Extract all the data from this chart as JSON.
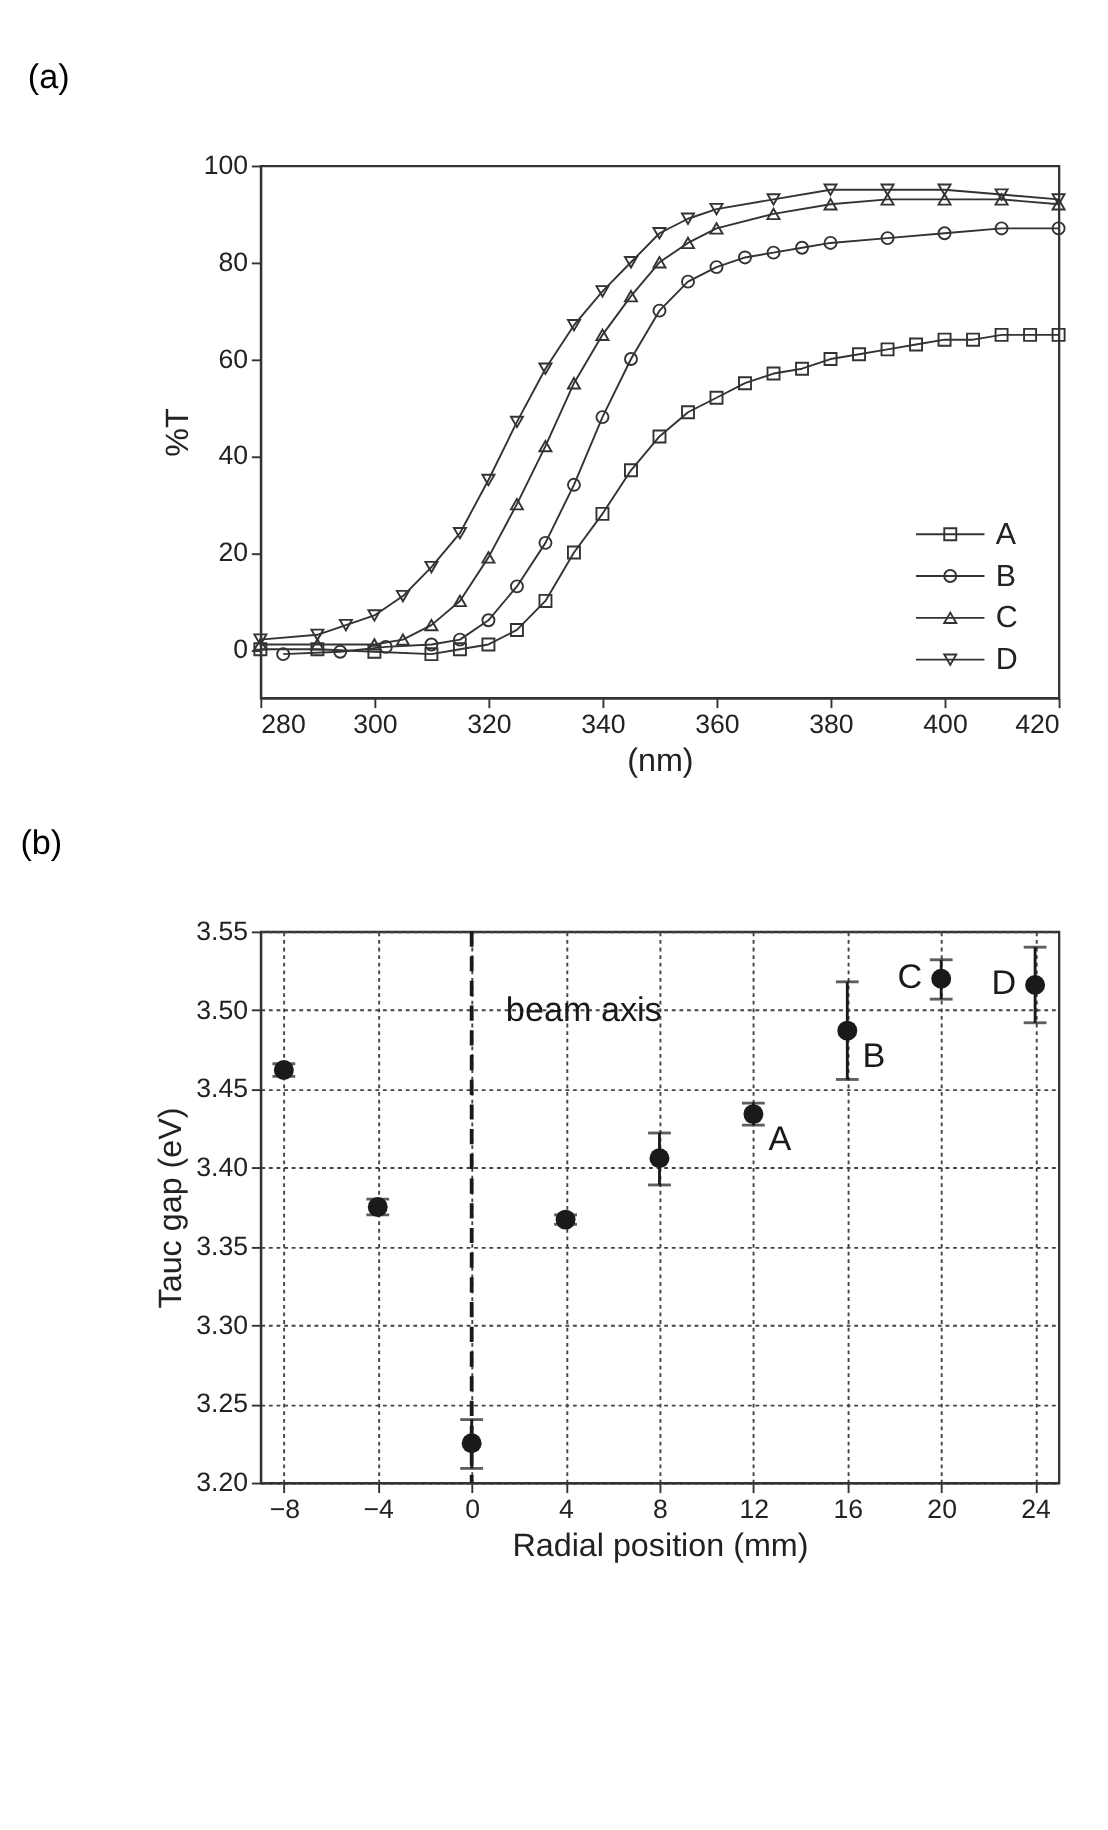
{
  "chart_data": [
    {
      "type": "line",
      "title": "(a)",
      "xlabel": "(nm)",
      "ylabel": "%T",
      "xlim": [
        280,
        420
      ],
      "ylim": [
        -10,
        100
      ],
      "xticks": [
        280,
        300,
        320,
        340,
        360,
        380,
        400,
        420
      ],
      "yticks": [
        0,
        20,
        40,
        60,
        80,
        100
      ],
      "grid": false,
      "legend": "bottom right",
      "line_style": "solid",
      "series": [
        {
          "name": "A",
          "color": "#333333",
          "marker": "square",
          "x": [
            280,
            290,
            300,
            310,
            315,
            320,
            325,
            330,
            335,
            340,
            345,
            350,
            355,
            360,
            365,
            370,
            375,
            380,
            385,
            390,
            395,
            400,
            405,
            410,
            415,
            420
          ],
          "values": [
            0,
            0,
            -0.5,
            -1,
            0,
            1,
            4,
            10,
            20,
            28,
            37,
            44,
            49,
            52,
            55,
            57,
            58,
            60,
            61,
            62,
            63,
            64,
            64,
            65,
            65,
            65
          ]
        },
        {
          "name": "B",
          "color": "#333333",
          "marker": "circle",
          "x": [
            284,
            294,
            302,
            310,
            315,
            320,
            325,
            330,
            335,
            340,
            345,
            350,
            355,
            360,
            365,
            370,
            375,
            380,
            390,
            400,
            410,
            420
          ],
          "values": [
            -1,
            -0.5,
            0.5,
            1,
            2,
            6,
            13,
            22,
            34,
            48,
            60,
            70,
            76,
            79,
            81,
            82,
            83,
            84,
            85,
            86,
            87,
            87
          ]
        },
        {
          "name": "C",
          "color": "#333333",
          "marker": "triangle",
          "x": [
            280,
            290,
            300,
            305,
            310,
            315,
            320,
            325,
            330,
            335,
            340,
            345,
            350,
            355,
            360,
            370,
            380,
            390,
            400,
            410,
            420
          ],
          "values": [
            1,
            1,
            1,
            2,
            5,
            10,
            19,
            30,
            42,
            55,
            65,
            73,
            80,
            84,
            87,
            90,
            92,
            93,
            93,
            93,
            92
          ]
        },
        {
          "name": "D",
          "color": "#333333",
          "marker": "triangle-down",
          "x": [
            280,
            290,
            295,
            300,
            305,
            310,
            315,
            320,
            325,
            330,
            335,
            340,
            345,
            350,
            355,
            360,
            370,
            380,
            390,
            400,
            410,
            420
          ],
          "values": [
            2,
            3,
            5,
            7,
            11,
            17,
            24,
            35,
            47,
            58,
            67,
            74,
            80,
            86,
            89,
            91,
            93,
            95,
            95,
            95,
            94,
            93
          ]
        }
      ]
    },
    {
      "type": "scatter",
      "title": "(b)",
      "xlabel": "Radial position (mm)",
      "ylabel": "Tauc gap (eV)",
      "xlim": [
        -9,
        25
      ],
      "ylim": [
        3.2,
        3.55
      ],
      "xticks": [
        -8,
        -4,
        0,
        4,
        8,
        12,
        16,
        20,
        24
      ],
      "yticks": [
        {
          "value": 3.2,
          "label": "3.20"
        },
        3.25,
        {
          "value": 3.3,
          "label": "3.30"
        },
        3.35,
        {
          "value": 3.4,
          "label": "3.40"
        },
        3.45,
        {
          "value": 3.5,
          "label": "3.50"
        },
        3.55
      ],
      "grid": true,
      "marker": "circle",
      "x": [
        -8,
        -4,
        0,
        4,
        8,
        12,
        16,
        20,
        24
      ],
      "series": [
        {
          "color": "#1a1a1a",
          "values": [
            3.462,
            3.375,
            3.225,
            3.367,
            3.406,
            3.434,
            3.487,
            3.52,
            3.516
          ],
          "errors": [
            0.004,
            0.005,
            [
              3.209,
              3.24
            ],
            0.003,
            [
              3.389,
              3.422
            ],
            0.007,
            [
              3.456,
              3.518
            ],
            [
              3.507,
              3.532
            ],
            [
              3.492,
              3.54
            ]
          ]
        }
      ],
      "ref_lines": [
        {
          "axis": "x",
          "value": 0,
          "label": "beam axis",
          "color": "#1a1a1a",
          "line_style": "dashed"
        }
      ],
      "annotations": [
        {
          "text": "A",
          "x": 12,
          "y": 3.434
        },
        {
          "text": "B",
          "x": 16,
          "y": 3.487
        },
        {
          "text": "C",
          "x": 20,
          "y": 3.52
        },
        {
          "text": "D",
          "x": 24,
          "y": 3.516
        }
      ]
    }
  ]
}
